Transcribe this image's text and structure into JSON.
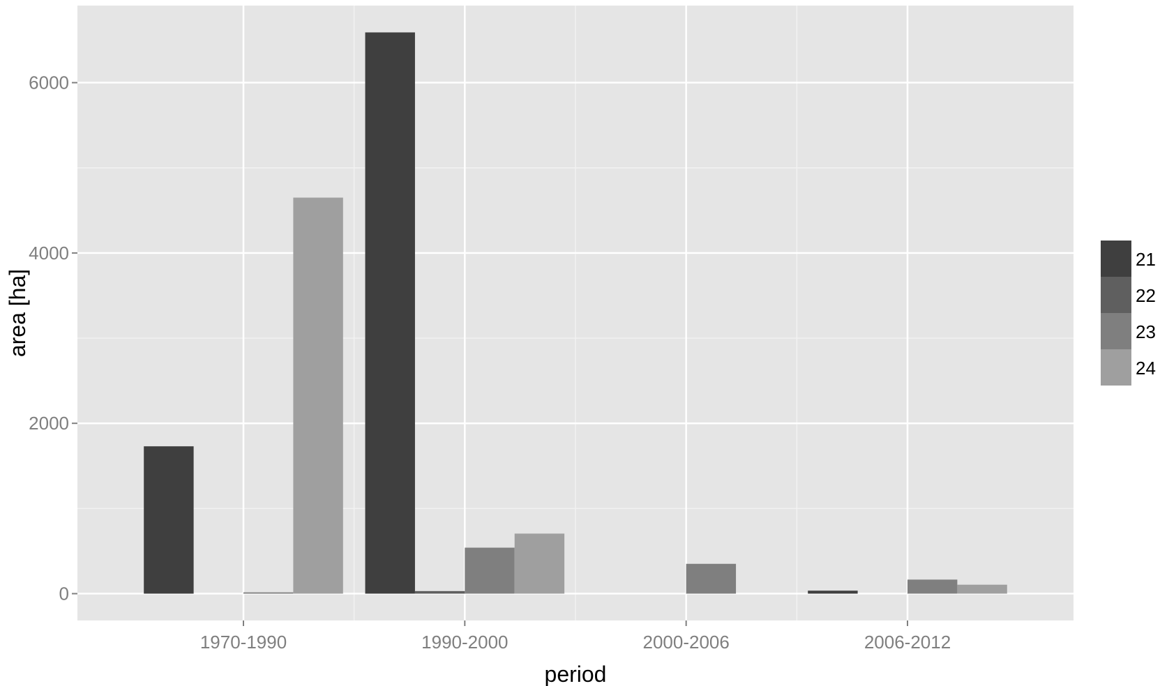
{
  "chart_data": {
    "type": "bar",
    "title": "",
    "xlabel": "period",
    "ylabel": "area [ha]",
    "categories": [
      "1970-1990",
      "1990-2000",
      "2000-2006",
      "2006-2012"
    ],
    "series": [
      {
        "name": "21",
        "color": "#3f3f3f",
        "values": [
          1730,
          6590,
          0,
          35
        ]
      },
      {
        "name": "22",
        "color": "#5f5f5f",
        "values": [
          0,
          30,
          0,
          0
        ]
      },
      {
        "name": "23",
        "color": "#7f7f7f",
        "values": [
          15,
          540,
          350,
          165
        ]
      },
      {
        "name": "24",
        "color": "#9f9f9f",
        "values": [
          4650,
          705,
          0,
          105
        ]
      }
    ],
    "ylim": [
      -315,
      6905
    ],
    "yticks": [
      0,
      2000,
      4000,
      6000
    ],
    "yticks_minor": [
      1000,
      3000,
      5000
    ],
    "grid": true,
    "legend": {
      "position": "right",
      "entries": [
        "21",
        "22",
        "23",
        "24"
      ]
    },
    "colors": {
      "panel": "#e5e5e5",
      "grid_major": "#ffffff",
      "grid_minor": "#f2f2f2"
    }
  }
}
